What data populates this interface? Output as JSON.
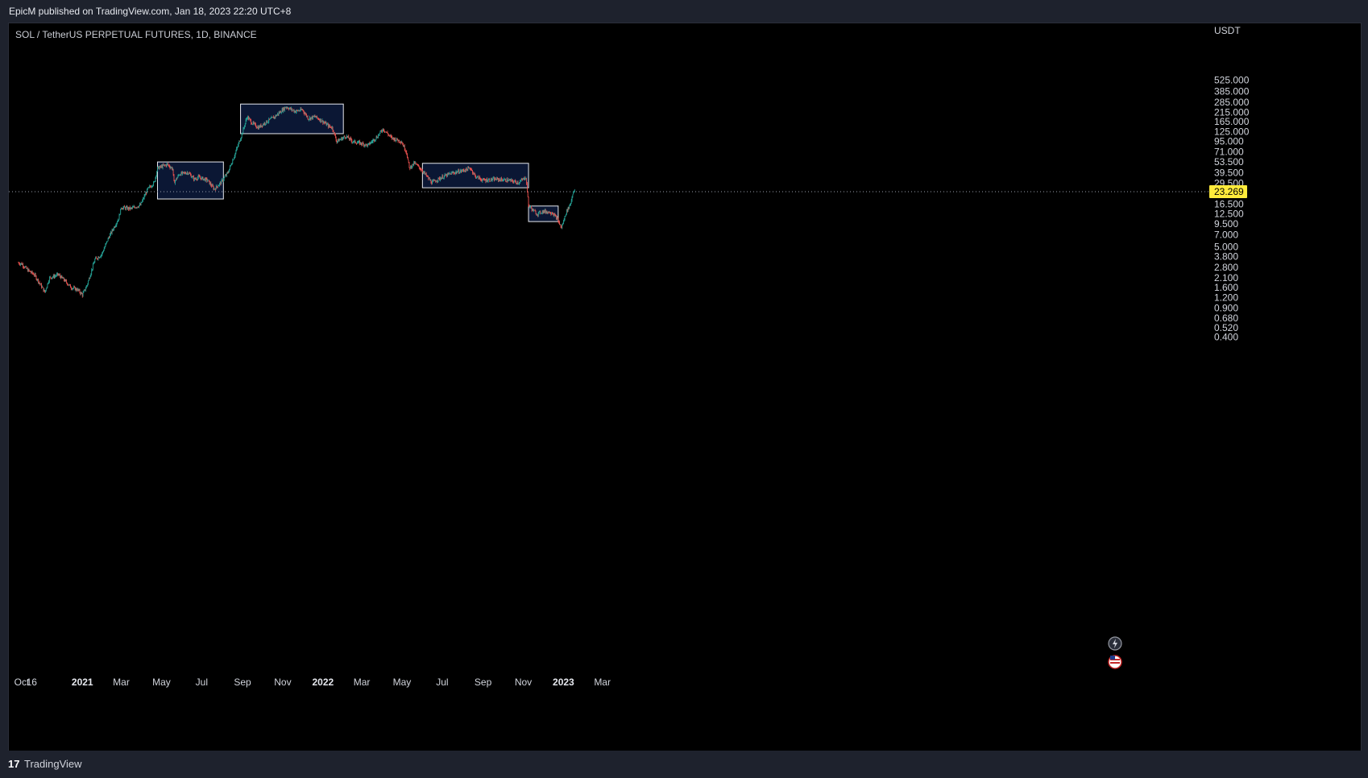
{
  "header": {
    "published": "EpicM published on TradingView.com, Jan 18, 2023 22:20 UTC+8"
  },
  "chart": {
    "symbol": "SOL / TetherUS PERPETUAL FUTURES, 1D, BINANCE"
  },
  "footer": {
    "logo_text": "TradingView"
  },
  "colors": {
    "background": "#000000",
    "frame": "#1e222d",
    "up": "#26a69a",
    "down": "#ef5350",
    "box_fill": "#0c1a3a",
    "box_border": "#e6e8ee",
    "price_label_bg": "#ffeb3b"
  },
  "icons": [
    "lightning-icon",
    "us-flag-icon"
  ],
  "chart_data": {
    "type": "candlestick",
    "title": "SOL / TetherUS PERPETUAL FUTURES, 1D, BINANCE",
    "scale": "log",
    "currency": "USDT",
    "y_ticks": [
      "525.000",
      "385.000",
      "285.000",
      "215.000",
      "165.000",
      "125.000",
      "95.000",
      "71.000",
      "53.500",
      "39.500",
      "29.500",
      "16.500",
      "12.500",
      "9.500",
      "7.000",
      "5.000",
      "3.800",
      "2.800",
      "2.100",
      "1.600",
      "1.200",
      "0.900",
      "0.680",
      "0.520",
      "0.400"
    ],
    "x_ticks": [
      {
        "label": "Oct",
        "bold": false
      },
      {
        "label": "16",
        "bold": false
      },
      {
        "label": "2021",
        "bold": true
      },
      {
        "label": "Mar",
        "bold": false
      },
      {
        "label": "May",
        "bold": false
      },
      {
        "label": "Jul",
        "bold": false
      },
      {
        "label": "Sep",
        "bold": false
      },
      {
        "label": "Nov",
        "bold": false
      },
      {
        "label": "2022",
        "bold": true
      },
      {
        "label": "Mar",
        "bold": false
      },
      {
        "label": "May",
        "bold": false
      },
      {
        "label": "Jul",
        "bold": false
      },
      {
        "label": "Sep",
        "bold": false
      },
      {
        "label": "Nov",
        "bold": false
      },
      {
        "label": "2023",
        "bold": true
      },
      {
        "label": "Mar",
        "bold": false
      }
    ],
    "last_price": "23.269",
    "price_path": [
      [
        "2020-09-25",
        3.2
      ],
      [
        "2020-10-01",
        3.1
      ],
      [
        "2020-10-10",
        2.6
      ],
      [
        "2020-10-20",
        2.3
      ],
      [
        "2020-11-01",
        1.6
      ],
      [
        "2020-11-05",
        1.4
      ],
      [
        "2020-11-12",
        2.1
      ],
      [
        "2020-11-20",
        2.2
      ],
      [
        "2020-11-25",
        2.3
      ],
      [
        "2020-12-05",
        1.95
      ],
      [
        "2020-12-15",
        1.6
      ],
      [
        "2020-12-25",
        1.5
      ],
      [
        "2021-01-01",
        1.3
      ],
      [
        "2021-01-08",
        1.7
      ],
      [
        "2021-01-20",
        3.5
      ],
      [
        "2021-01-30",
        4.0
      ],
      [
        "2021-02-10",
        6.5
      ],
      [
        "2021-02-25",
        11.0
      ],
      [
        "2021-03-01",
        15.0
      ],
      [
        "2021-03-15",
        14.5
      ],
      [
        "2021-03-30",
        16.0
      ],
      [
        "2021-04-10",
        25.0
      ],
      [
        "2021-04-20",
        30.0
      ],
      [
        "2021-04-25",
        45.0
      ],
      [
        "2021-05-10",
        50.0
      ],
      [
        "2021-05-18",
        44.0
      ],
      [
        "2021-05-20",
        30.0
      ],
      [
        "2021-05-28",
        38.0
      ],
      [
        "2021-06-10",
        40.0
      ],
      [
        "2021-06-20",
        33.0
      ],
      [
        "2021-06-26",
        35.0
      ],
      [
        "2021-07-10",
        32.0
      ],
      [
        "2021-07-20",
        25.0
      ],
      [
        "2021-07-30",
        30.0
      ],
      [
        "2021-08-10",
        40.0
      ],
      [
        "2021-08-20",
        65.0
      ],
      [
        "2021-08-30",
        110.0
      ],
      [
        "2021-09-08",
        190.0
      ],
      [
        "2021-09-15",
        160.0
      ],
      [
        "2021-09-25",
        140.0
      ],
      [
        "2021-10-05",
        160.0
      ],
      [
        "2021-10-20",
        190.0
      ],
      [
        "2021-11-06",
        250.0
      ],
      [
        "2021-11-20",
        220.0
      ],
      [
        "2021-12-01",
        230.0
      ],
      [
        "2021-12-10",
        180.0
      ],
      [
        "2021-12-20",
        190.0
      ],
      [
        "2021-12-30",
        170.0
      ],
      [
        "2022-01-10",
        145.0
      ],
      [
        "2022-01-15",
        140.0
      ],
      [
        "2022-01-22",
        95.0
      ],
      [
        "2022-02-05",
        110.0
      ],
      [
        "2022-02-15",
        95.0
      ],
      [
        "2022-02-28",
        90.0
      ],
      [
        "2022-03-10",
        85.0
      ],
      [
        "2022-03-25",
        110.0
      ],
      [
        "2022-04-02",
        135.0
      ],
      [
        "2022-04-15",
        105.0
      ],
      [
        "2022-04-30",
        95.0
      ],
      [
        "2022-05-08",
        70.0
      ],
      [
        "2022-05-12",
        45.0
      ],
      [
        "2022-05-20",
        52.0
      ],
      [
        "2022-06-01",
        42.0
      ],
      [
        "2022-06-15",
        30.0
      ],
      [
        "2022-07-01",
        35.0
      ],
      [
        "2022-07-15",
        39.0
      ],
      [
        "2022-08-01",
        42.0
      ],
      [
        "2022-08-13",
        45.0
      ],
      [
        "2022-08-20",
        36.0
      ],
      [
        "2022-09-01",
        32.0
      ],
      [
        "2022-09-20",
        33.0
      ],
      [
        "2022-10-10",
        32.0
      ],
      [
        "2022-10-25",
        30.0
      ],
      [
        "2022-11-05",
        35.0
      ],
      [
        "2022-11-09",
        16.0
      ],
      [
        "2022-11-15",
        14.0
      ],
      [
        "2022-11-22",
        12.5
      ],
      [
        "2022-12-01",
        13.5
      ],
      [
        "2022-12-15",
        13.0
      ],
      [
        "2022-12-22",
        11.0
      ],
      [
        "2022-12-29",
        8.5
      ],
      [
        "2023-01-05",
        13.0
      ],
      [
        "2023-01-12",
        17.0
      ],
      [
        "2023-01-16",
        24.0
      ],
      [
        "2023-01-18",
        23.269
      ]
    ],
    "boxes": [
      {
        "x0": "2021-04-25",
        "x1": "2021-08-03",
        "y0": 53.5,
        "y1": 19.0
      },
      {
        "x0": "2021-08-29",
        "x1": "2022-02-01",
        "y0": 270.0,
        "y1": 118.0
      },
      {
        "x0": "2022-06-01",
        "x1": "2022-11-09",
        "y0": 51.5,
        "y1": 26.0
      },
      {
        "x0": "2022-11-09",
        "x1": "2022-12-24",
        "y0": 15.6,
        "y1": 10.1
      }
    ]
  }
}
